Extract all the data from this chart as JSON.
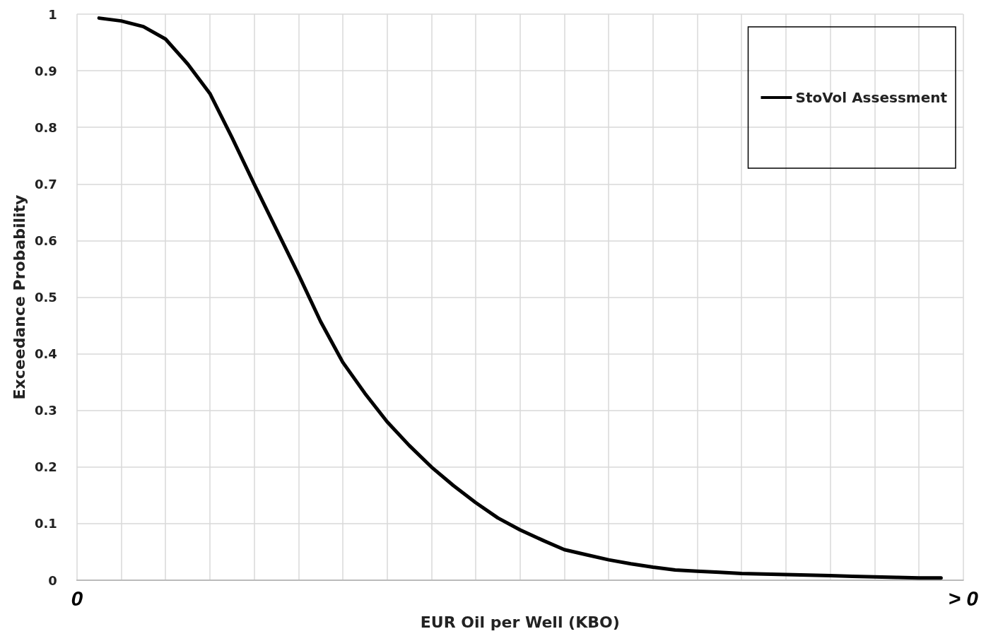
{
  "chart_data": {
    "type": "line",
    "xlabel": "EUR Oil per Well (KBO)",
    "ylabel": "Exceedance Probability",
    "categories": [
      "0",
      null,
      null,
      null,
      null,
      null,
      null,
      null,
      null,
      null,
      null,
      null,
      null,
      null,
      null,
      null,
      null,
      null,
      null,
      null,
      null,
      null,
      null,
      null,
      null,
      null,
      null,
      null,
      null,
      null,
      null,
      null,
      null,
      null,
      null,
      null,
      null,
      null,
      null,
      null,
      "> 0"
    ],
    "ylim": [
      0,
      1
    ],
    "yticks": [
      0,
      0.1,
      0.2,
      0.3,
      0.4,
      0.5,
      0.6,
      0.7,
      0.8,
      0.9,
      1
    ],
    "grid": true,
    "legend": "top right",
    "marker": "none",
    "line_style": "solid",
    "series": [
      {
        "name": "StoVol Assessment",
        "color": "#000000",
        "values": [
          null,
          0.993,
          0.988,
          0.978,
          0.956,
          0.912,
          0.86,
          0.782,
          0.7,
          0.62,
          0.54,
          0.457,
          0.385,
          0.33,
          0.28,
          0.238,
          0.2,
          0.167,
          0.137,
          0.11,
          0.089,
          0.071,
          0.054,
          0.045,
          0.036,
          0.029,
          0.023,
          0.018,
          0.016,
          0.014,
          0.012,
          0.011,
          0.01,
          0.009,
          0.008,
          0.007,
          0.006,
          0.005,
          0.004,
          0.004,
          null
        ]
      }
    ]
  }
}
